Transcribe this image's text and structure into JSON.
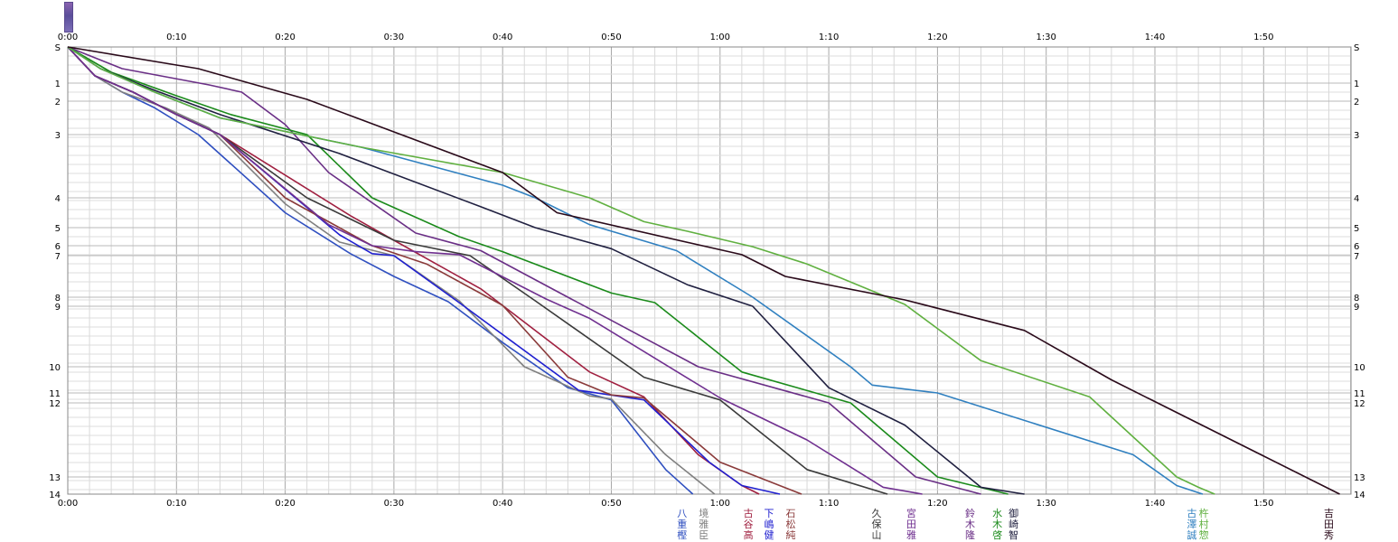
{
  "chart_data": {
    "type": "line",
    "x_axis": {
      "unit": "minutes",
      "xlim": [
        0,
        118
      ],
      "tick_labels": [
        "0:00",
        "0:10",
        "0:20",
        "0:30",
        "0:40",
        "0:50",
        "1:00",
        "1:10",
        "1:20",
        "1:30",
        "1:40",
        "1:50"
      ],
      "tick_values": [
        0,
        10,
        20,
        30,
        40,
        50,
        60,
        70,
        80,
        90,
        100,
        110
      ]
    },
    "y_axis": {
      "orientation": "top-to-bottom",
      "ylim": [
        0,
        14
      ],
      "tick_labels": [
        "S",
        "1",
        "2",
        "3",
        "4",
        "5",
        "6",
        "7",
        "8",
        "9",
        "10",
        "11",
        "12",
        "13",
        "14"
      ],
      "tick_values": [
        0,
        1,
        2,
        3,
        4,
        5,
        6,
        7,
        8,
        9,
        10,
        11,
        12,
        13,
        14
      ]
    },
    "grid": true,
    "series": [
      {
        "name": "八重樫",
        "color": "#3050c0",
        "points": [
          [
            0,
            0
          ],
          [
            2.5,
            0.8
          ],
          [
            5,
            1.5
          ],
          [
            8,
            2.2
          ],
          [
            12,
            3.0
          ],
          [
            20,
            4.5
          ],
          [
            26,
            6.8
          ],
          [
            30,
            7.5
          ],
          [
            35,
            8.5
          ],
          [
            40,
            9.6
          ],
          [
            46,
            10.8
          ],
          [
            50,
            11.7
          ],
          [
            55,
            12.9
          ],
          [
            57.5,
            14
          ]
        ]
      },
      {
        "name": "境 雅臣",
        "color": "#808080",
        "points": [
          [
            0,
            0
          ],
          [
            2.5,
            0.8
          ],
          [
            5,
            1.5
          ],
          [
            9,
            2.2
          ],
          [
            13,
            2.8
          ],
          [
            20,
            4.2
          ],
          [
            25,
            5.8
          ],
          [
            30,
            7.0
          ],
          [
            36,
            8.4
          ],
          [
            42,
            10.0
          ],
          [
            48,
            11.3
          ],
          [
            50,
            11.6
          ],
          [
            55,
            12.7
          ],
          [
            59.5,
            14
          ]
        ]
      },
      {
        "name": "古谷 高",
        "color": "#a02040",
        "points": [
          [
            0,
            0
          ],
          [
            2.5,
            0.8
          ],
          [
            6,
            1.5
          ],
          [
            10,
            2.4
          ],
          [
            14,
            3.0
          ],
          [
            26,
            4.6
          ],
          [
            30,
            5.7
          ],
          [
            38,
            7.8
          ],
          [
            48,
            10.2
          ],
          [
            53,
            11.4
          ],
          [
            58,
            12.7
          ],
          [
            62,
            13.5
          ],
          [
            63.6,
            14
          ]
        ]
      },
      {
        "name": "下嶋 健",
        "color": "#2020d0",
        "points": [
          [
            0,
            0
          ],
          [
            2.5,
            0.8
          ],
          [
            6,
            1.5
          ],
          [
            10,
            2.4
          ],
          [
            14,
            3.0
          ],
          [
            25,
            5.4
          ],
          [
            28,
            6.8
          ],
          [
            30,
            7.0
          ],
          [
            36,
            8.6
          ],
          [
            41,
            9.6
          ],
          [
            47,
            10.9
          ],
          [
            53,
            11.7
          ],
          [
            59,
            12.8
          ],
          [
            62,
            13.5
          ],
          [
            65.5,
            14
          ]
        ]
      },
      {
        "name": "石松 純",
        "color": "#8a3a3a",
        "points": [
          [
            0,
            0
          ],
          [
            2.5,
            0.8
          ],
          [
            6,
            1.5
          ],
          [
            10,
            2.4
          ],
          [
            14,
            3.0
          ],
          [
            20,
            4.0
          ],
          [
            28,
            6.0
          ],
          [
            33,
            7.2
          ],
          [
            40,
            8.9
          ],
          [
            46,
            10.4
          ],
          [
            50,
            11.2
          ],
          [
            53,
            11.5
          ],
          [
            60,
            12.8
          ],
          [
            67.5,
            14
          ]
        ]
      },
      {
        "name": "久保山",
        "color": "#3a3a3a",
        "points": [
          [
            0,
            0
          ],
          [
            2.5,
            0.8
          ],
          [
            6,
            1.5
          ],
          [
            10,
            2.4
          ],
          [
            14,
            3.0
          ],
          [
            22,
            4.0
          ],
          [
            30,
            5.7
          ],
          [
            37,
            7.0
          ],
          [
            43,
            8.4
          ],
          [
            53,
            10.4
          ],
          [
            60,
            11.7
          ],
          [
            68,
            12.9
          ],
          [
            75.4,
            14
          ]
        ]
      },
      {
        "name": "宮田 雅",
        "color": "#703090",
        "points": [
          [
            0,
            0
          ],
          [
            2.5,
            0.8
          ],
          [
            6,
            1.5
          ],
          [
            10,
            2.4
          ],
          [
            14,
            3.0
          ],
          [
            24,
            4.9
          ],
          [
            28,
            6.0
          ],
          [
            32,
            6.6
          ],
          [
            36,
            6.9
          ],
          [
            44,
            8.2
          ],
          [
            48,
            9.2
          ],
          [
            60,
            11.5
          ],
          [
            68,
            12.5
          ],
          [
            75,
            13.6
          ],
          [
            78.6,
            14
          ]
        ]
      },
      {
        "name": "鈴木 隆",
        "color": "#6a2f86",
        "points": [
          [
            0,
            0
          ],
          [
            5,
            0.6
          ],
          [
            13,
            1.1
          ],
          [
            16,
            1.5
          ],
          [
            20,
            2.7
          ],
          [
            24,
            3.6
          ],
          [
            32,
            5.3
          ],
          [
            38,
            6.5
          ],
          [
            46,
            8.0
          ],
          [
            58,
            10.0
          ],
          [
            70,
            12.0
          ],
          [
            78,
            13.0
          ],
          [
            84,
            14
          ]
        ]
      },
      {
        "name": "水木 啓",
        "color": "#1a8a1a",
        "points": [
          [
            0,
            0
          ],
          [
            4,
            0.7
          ],
          [
            10,
            1.7
          ],
          [
            15,
            2.4
          ],
          [
            22,
            3.0
          ],
          [
            28,
            4.0
          ],
          [
            36,
            5.5
          ],
          [
            40,
            6.6
          ],
          [
            50,
            7.9
          ],
          [
            54,
            8.6
          ],
          [
            62,
            10.2
          ],
          [
            72,
            12.0
          ],
          [
            80,
            13.0
          ],
          [
            86.5,
            14
          ]
        ]
      },
      {
        "name": "御崎 智",
        "color": "#202040",
        "points": [
          [
            0,
            0
          ],
          [
            3,
            0.6
          ],
          [
            8,
            1.4
          ],
          [
            14,
            2.4
          ],
          [
            25,
            3.3
          ],
          [
            38,
            4.3
          ],
          [
            43,
            5.0
          ],
          [
            50,
            6.3
          ],
          [
            57,
            7.7
          ],
          [
            63,
            9.0
          ],
          [
            70,
            10.8
          ],
          [
            77,
            12.3
          ],
          [
            84,
            13.6
          ],
          [
            88,
            14
          ]
        ]
      },
      {
        "name": "古澤 誠",
        "color": "#3080c0",
        "points": [
          [
            0,
            0
          ],
          [
            3,
            0.6
          ],
          [
            8,
            1.5
          ],
          [
            14,
            2.5
          ],
          [
            27,
            3.2
          ],
          [
            40,
            3.8
          ],
          [
            43,
            4.0
          ],
          [
            48,
            4.9
          ],
          [
            56,
            6.5
          ],
          [
            63,
            8.0
          ],
          [
            72,
            10.0
          ],
          [
            74,
            10.7
          ],
          [
            80,
            11.0
          ],
          [
            98,
            12.7
          ],
          [
            102,
            13.5
          ],
          [
            104.4,
            14
          ]
        ]
      },
      {
        "name": "杵村 惣",
        "color": "#60b040",
        "points": [
          [
            0,
            0
          ],
          [
            3,
            0.6
          ],
          [
            8,
            1.5
          ],
          [
            14,
            2.5
          ],
          [
            27,
            3.2
          ],
          [
            40,
            3.6
          ],
          [
            48,
            4.0
          ],
          [
            53,
            4.8
          ],
          [
            57,
            5.2
          ],
          [
            63,
            6.1
          ],
          [
            68,
            7.2
          ],
          [
            77,
            8.8
          ],
          [
            84,
            9.9
          ],
          [
            94,
            11.4
          ],
          [
            102,
            13.0
          ],
          [
            104,
            13.6
          ],
          [
            105.5,
            14
          ]
        ]
      },
      {
        "name": "吉田 秀",
        "color": "#2a0a1a",
        "points": [
          [
            0,
            0
          ],
          [
            12,
            0.6
          ],
          [
            22,
            1.9
          ],
          [
            40,
            3.6
          ],
          [
            45,
            4.5
          ],
          [
            62,
            6.9
          ],
          [
            66,
            7.5
          ],
          [
            77,
            8.3
          ],
          [
            88,
            9.4
          ],
          [
            96,
            10.5
          ],
          [
            117,
            14
          ]
        ]
      }
    ]
  }
}
